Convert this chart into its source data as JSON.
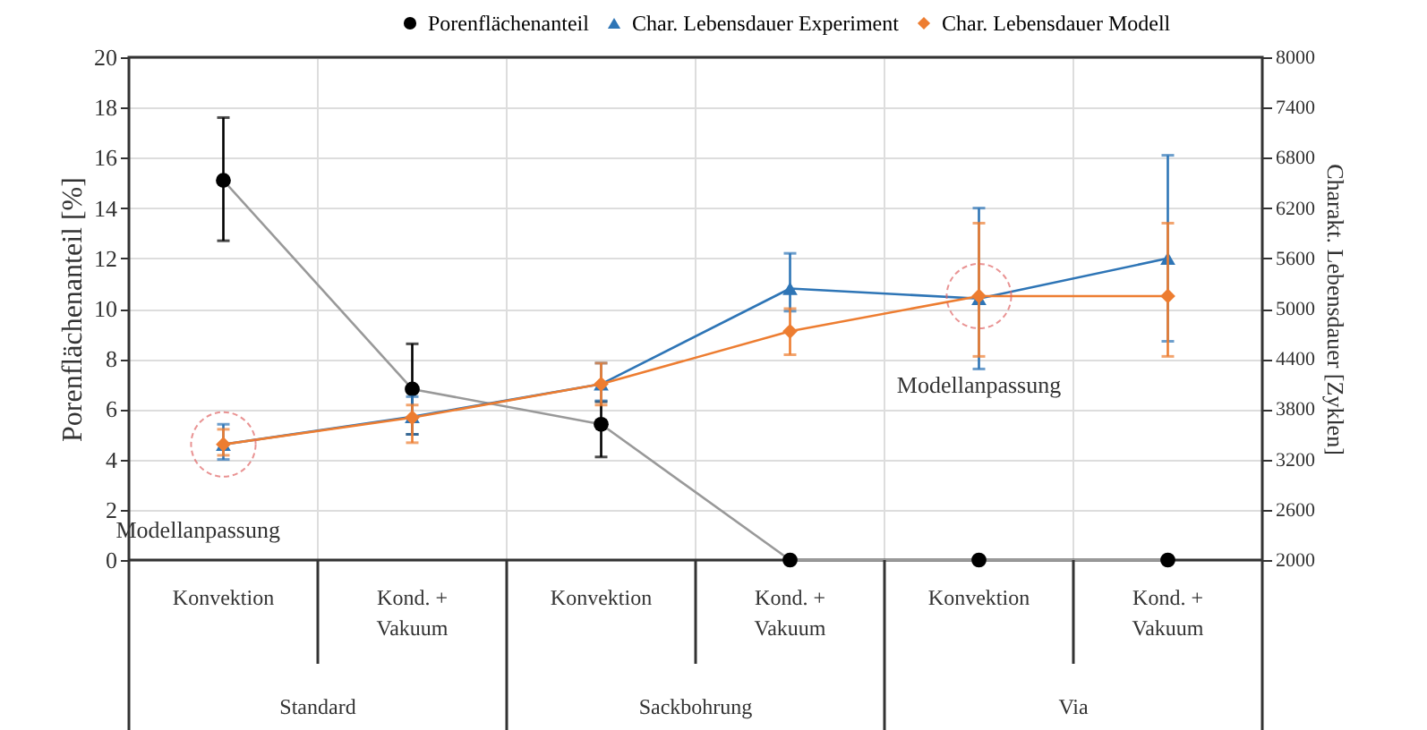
{
  "chart_data": {
    "type": "line",
    "categories": [
      "Konvektion",
      "Kond. + Vakuum",
      "Konvektion",
      "Kond. + Vakuum",
      "Konvektion",
      "Kond. + Vakuum"
    ],
    "ylabel": "Porenflächenanteil  [%]",
    "y2label": "Charakt. Lebensdauer [Zyklen]",
    "ylim": [
      0,
      20
    ],
    "yticks": [
      0,
      2,
      4,
      6,
      8,
      10,
      12,
      14,
      16,
      18,
      20
    ],
    "y2lim": [
      2000,
      8000
    ],
    "y2ticks": [
      2000,
      2600,
      3200,
      3800,
      4400,
      5000,
      5600,
      6200,
      6800,
      7400,
      8000
    ],
    "grid": true,
    "legend": "top",
    "series": [
      {
        "name": "Porenflächenanteil",
        "color": "#000000",
        "marker": "circle",
        "values": [
          15.1,
          6.8,
          5.4,
          0,
          0,
          0
        ],
        "errors": [
          [
            12.7,
            17.6
          ],
          [
            5.0,
            8.6
          ],
          [
            4.1,
            6.3
          ],
          null,
          null,
          null
        ]
      },
      {
        "name": "Char. Lebensdauer Experiment",
        "color": "#2e75b6",
        "marker": "triangle",
        "axis": "y2",
        "values": [
          3380,
          3710,
          4100,
          5240,
          5120,
          5600
        ],
        "errors": [
          [
            3200,
            3620
          ],
          [
            3500,
            3950
          ],
          [
            3900,
            4350
          ],
          [
            4970,
            5660
          ],
          [
            4280,
            6200
          ],
          [
            4610,
            6830
          ]
        ]
      },
      {
        "name": "Char. Lebensdauer Modell",
        "color": "#ed7d31",
        "marker": "diamond",
        "axis": "y2",
        "values": [
          3380,
          3700,
          4100,
          4730,
          5150,
          5150
        ],
        "errors": [
          [
            3250,
            3560
          ],
          [
            3400,
            3850
          ],
          [
            3850,
            4350
          ],
          [
            4450,
            5000
          ],
          [
            4430,
            6020
          ],
          [
            4430,
            6020
          ]
        ]
      }
    ],
    "annotations": [
      "Modellanpassung",
      "Modellanpassung",
      "Standard",
      "Sackbohrung",
      "Via"
    ]
  }
}
